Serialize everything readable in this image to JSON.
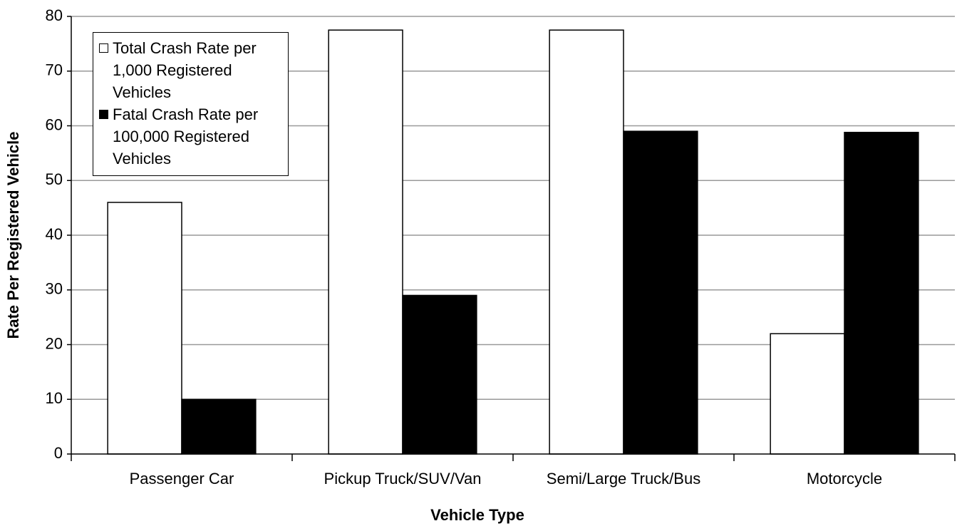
{
  "chart_data": {
    "type": "bar",
    "x_label": "Vehicle Type",
    "y_label": "Rate Per Registered Vehicle",
    "categories": [
      "Passenger Car",
      "Pickup Truck/SUV/Van",
      "Semi/Large Truck/Bus",
      "Motorcycle"
    ],
    "series": [
      {
        "name": "Total Crash Rate per 1,000 Registered Vehicles",
        "color": "#ffffff",
        "values": [
          46,
          77.5,
          77.5,
          22
        ]
      },
      {
        "name": "Fatal Crash Rate per 100,000 Registered Vehicles",
        "color": "#000000",
        "values": [
          10,
          29,
          59,
          58.8
        ]
      }
    ],
    "ylim": [
      0,
      80
    ],
    "yticks": [
      0,
      10,
      20,
      30,
      40,
      50,
      60,
      70,
      80
    ],
    "grid": true,
    "legend": "upper left"
  }
}
